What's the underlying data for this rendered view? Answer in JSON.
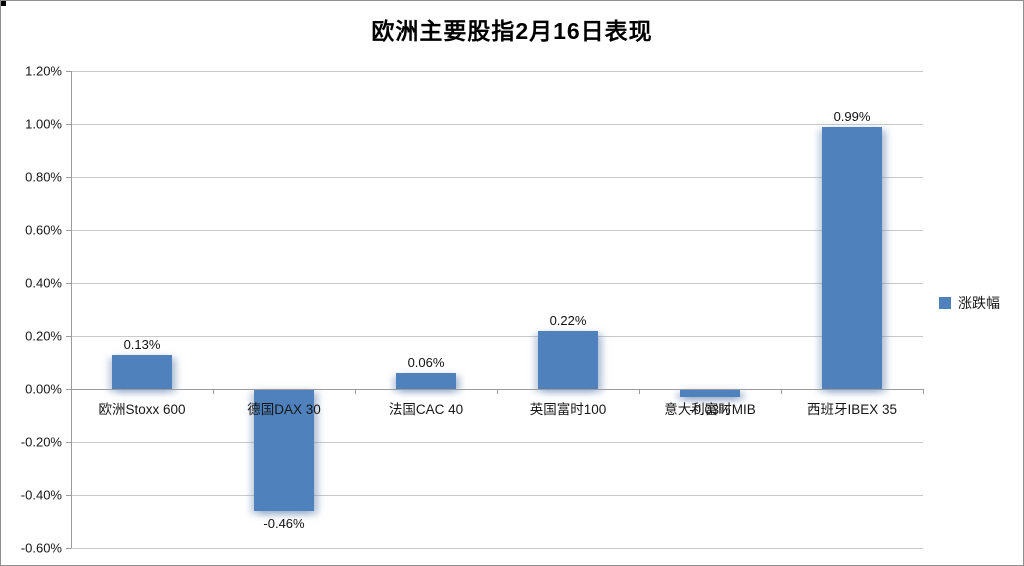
{
  "window": {
    "background": "#ffffff",
    "border_color": "#8f8f8f"
  },
  "chart_data": {
    "type": "bar",
    "title": "欧洲主要股指2月16日表现",
    "categories": [
      "欧洲Stoxx 600",
      "德国DAX 30",
      "法国CAC 40",
      "英国富时100",
      "意大利富时MIB",
      "西班牙IBEX 35"
    ],
    "series": [
      {
        "name": "涨跌幅",
        "values": [
          0.13,
          -0.46,
          0.06,
          0.22,
          -0.03,
          0.99
        ],
        "labels": [
          "0.13%",
          "-0.46%",
          "0.06%",
          "0.22%",
          "-0.03%",
          "0.99%"
        ]
      }
    ],
    "ylim": [
      -0.6,
      1.2
    ],
    "ytick_step": 0.2,
    "yticks": [
      {
        "value": 1.2,
        "label": "1.20%"
      },
      {
        "value": 1.0,
        "label": "1.00%"
      },
      {
        "value": 0.8,
        "label": "0.80%"
      },
      {
        "value": 0.6,
        "label": "0.60%"
      },
      {
        "value": 0.4,
        "label": "0.40%"
      },
      {
        "value": 0.2,
        "label": "0.20%"
      },
      {
        "value": 0.0,
        "label": "0.00%"
      },
      {
        "value": -0.2,
        "label": "-0.20%"
      },
      {
        "value": -0.4,
        "label": "-0.40%"
      },
      {
        "value": -0.6,
        "label": "-0.60%"
      }
    ],
    "grid": true,
    "legend_position": "right",
    "bar_color": "#4F81BD",
    "gridline_color": "#c9c9c9",
    "axis_color": "#9b9b9b",
    "label_color": "#161616"
  }
}
